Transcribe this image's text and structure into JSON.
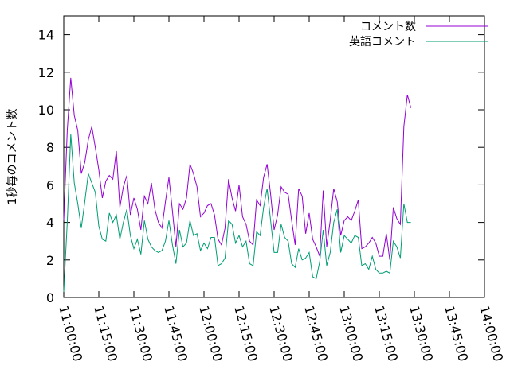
{
  "chart_data": {
    "type": "line",
    "title": "",
    "xlabel": "",
    "ylabel": "1秒毎のコメント数",
    "ylim": [
      0,
      15
    ],
    "yticks": [
      0,
      2,
      4,
      6,
      8,
      10,
      12,
      14
    ],
    "xlim": [
      "11:00:00",
      "14:00:00"
    ],
    "xtick_labels": [
      "11:00:00",
      "11:15:00",
      "11:30:00",
      "11:45:00",
      "12:00:00",
      "12:15:00",
      "12:30:00",
      "12:45:00",
      "13:00:00",
      "13:15:00",
      "13:30:00",
      "13:45:00",
      "14:00:00"
    ],
    "x_step_minutes": 1.5,
    "grid": false,
    "legend_position": "top-right",
    "series": [
      {
        "name": "コメント数",
        "color": "#9400d3",
        "values": [
          4.1,
          8.9,
          11.7,
          9.7,
          8.9,
          6.6,
          7.2,
          8.4,
          9.1,
          8.0,
          6.8,
          5.3,
          6.2,
          6.5,
          6.3,
          7.8,
          4.8,
          5.9,
          6.5,
          4.4,
          5.3,
          4.7,
          3.6,
          5.4,
          5.0,
          6.1,
          4.7,
          4.0,
          3.7,
          5.1,
          6.4,
          4.6,
          2.7,
          5.0,
          4.7,
          5.3,
          7.1,
          6.6,
          5.9,
          4.3,
          4.5,
          4.9,
          5.0,
          4.4,
          3.1,
          2.8,
          3.7,
          6.3,
          5.3,
          4.6,
          6.0,
          4.3,
          3.9,
          3.0,
          2.8,
          5.2,
          4.9,
          6.4,
          7.1,
          5.5,
          3.6,
          4.4,
          5.9,
          5.6,
          5.5,
          4.1,
          2.8,
          5.8,
          5.4,
          3.4,
          4.5,
          3.1,
          2.7,
          2.2,
          5.7,
          2.7,
          4.1,
          5.8,
          5.1,
          3.3,
          4.1,
          4.3,
          4.1,
          4.6,
          5.2,
          2.6,
          2.7,
          2.9,
          3.2,
          2.9,
          2.2,
          2.2,
          3.4,
          2.0,
          4.8,
          4.2,
          3.9,
          9.1,
          10.8,
          10.1
        ]
      },
      {
        "name": "英語コメント",
        "color": "#009e73",
        "values": [
          0.3,
          4.0,
          8.7,
          6.1,
          5.0,
          3.7,
          5.1,
          6.6,
          6.1,
          5.6,
          3.8,
          3.1,
          3.0,
          4.5,
          4.0,
          4.4,
          3.1,
          4.0,
          4.7,
          3.3,
          2.6,
          3.1,
          2.3,
          4.1,
          3.1,
          2.7,
          2.5,
          2.4,
          2.5,
          3.0,
          4.1,
          2.8,
          1.8,
          3.6,
          2.7,
          2.9,
          4.1,
          3.3,
          3.4,
          2.5,
          2.9,
          2.6,
          3.2,
          3.2,
          1.7,
          1.8,
          2.1,
          4.1,
          3.9,
          2.9,
          3.3,
          2.7,
          3.0,
          1.8,
          1.7,
          3.5,
          3.3,
          4.8,
          5.8,
          4.1,
          2.4,
          2.4,
          3.9,
          3.2,
          3.0,
          1.8,
          1.6,
          2.6,
          2.0,
          2.1,
          2.4,
          1.1,
          1.0,
          1.9,
          3.6,
          1.7,
          2.4,
          4.0,
          4.7,
          2.4,
          3.3,
          3.1,
          2.9,
          3.3,
          3.2,
          1.7,
          1.8,
          1.5,
          2.2,
          1.5,
          1.3,
          1.3,
          1.4,
          1.3,
          3.0,
          2.7,
          2.1,
          5.0,
          4.0,
          4.0
        ]
      }
    ]
  }
}
